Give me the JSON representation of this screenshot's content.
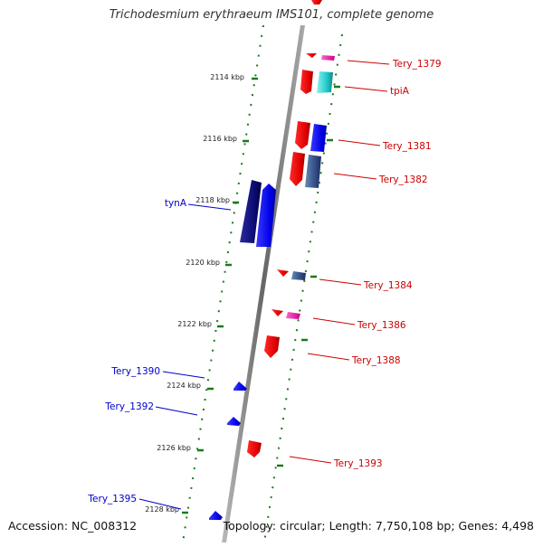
{
  "title": "Trichodesmium erythraeum IMS101, complete genome",
  "footer": {
    "accession": "Accession: NC_008312",
    "info": "Topology: circular; Length: 7,750,108 bp; Genes: 4,498"
  },
  "ticks": [
    "2114 kbp",
    "2116 kbp",
    "2118 kbp",
    "2120 kbp",
    "2122 kbp",
    "2124 kbp",
    "2126 kbp",
    "2128 kbp"
  ],
  "genes": [
    {
      "label": "Tery_1379",
      "strand": "forward"
    },
    {
      "label": "tpiA",
      "strand": "forward"
    },
    {
      "label": "Tery_1381",
      "strand": "forward"
    },
    {
      "label": "Tery_1382",
      "strand": "forward"
    },
    {
      "label": "tynA",
      "strand": "reverse"
    },
    {
      "label": "Tery_1384",
      "strand": "forward"
    },
    {
      "label": "Tery_1386",
      "strand": "forward"
    },
    {
      "label": "Tery_1388",
      "strand": "forward"
    },
    {
      "label": "Tery_1390",
      "strand": "reverse"
    },
    {
      "label": "Tery_1392",
      "strand": "reverse"
    },
    {
      "label": "Tery_1393",
      "strand": "forward"
    },
    {
      "label": "Tery_1395",
      "strand": "reverse"
    }
  ],
  "colors": {
    "forward_label": "#cc0000",
    "reverse_label": "#0000cc",
    "forward_arrow": "#ff0000",
    "reverse_arrow": "#0000ff",
    "backbone": "#888888",
    "tick": "#1a7a1a"
  }
}
